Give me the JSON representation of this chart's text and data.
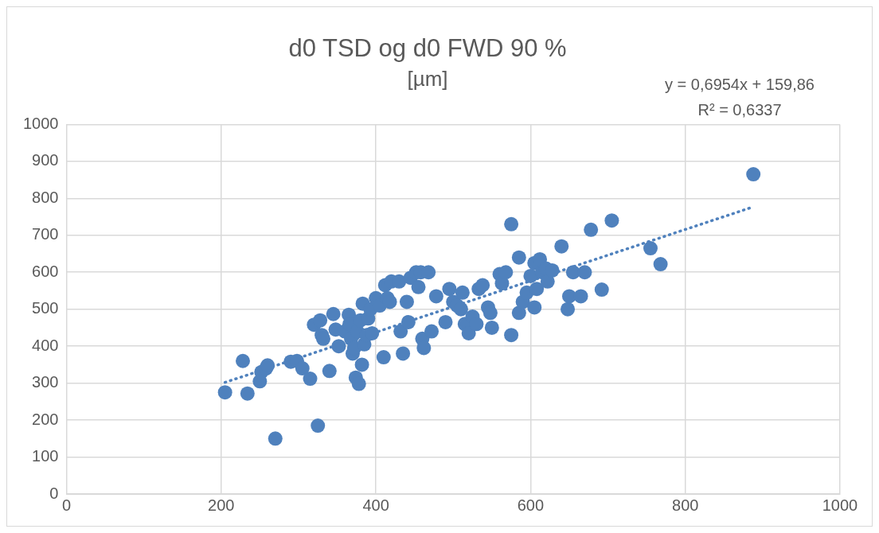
{
  "chart_data": {
    "type": "scatter",
    "title": "d0 TSD og d0 FWD 90 %",
    "subtitle": "[µm]",
    "annotations": [
      "y = 0,6954x + 159,86",
      "R² = 0,6337"
    ],
    "xlim": [
      0,
      1000
    ],
    "xticks": [
      0,
      200,
      400,
      600,
      800,
      1000
    ],
    "ylim": [
      0,
      1000
    ],
    "yticks": [
      0,
      100,
      200,
      300,
      400,
      500,
      600,
      700,
      800,
      900,
      1000
    ],
    "grid": true,
    "legend": false,
    "marker": "circle",
    "series": [
      {
        "color": "#4f81bd",
        "x": [
          205,
          228,
          234,
          250,
          252,
          258,
          260,
          270,
          290,
          298,
          305,
          315,
          320,
          325,
          328,
          330,
          332,
          340,
          345,
          348,
          352,
          360,
          365,
          366,
          368,
          370,
          372,
          374,
          376,
          378,
          380,
          382,
          383,
          385,
          388,
          390,
          393,
          395,
          400,
          405,
          410,
          412,
          415,
          418,
          420,
          430,
          432,
          435,
          440,
          442,
          445,
          452,
          455,
          458,
          460,
          462,
          468,
          472,
          478,
          490,
          495,
          500,
          505,
          510,
          512,
          515,
          520,
          525,
          530,
          533,
          538,
          545,
          548,
          550,
          560,
          563,
          568,
          575,
          575,
          585,
          585,
          590,
          595,
          600,
          605,
          605,
          608,
          612,
          615,
          620,
          622,
          628,
          640,
          648,
          650,
          655,
          665,
          670,
          678,
          692,
          705,
          755,
          768,
          888
        ],
        "values": [
          275,
          360,
          272,
          305,
          330,
          340,
          348,
          150,
          358,
          360,
          340,
          312,
          458,
          185,
          470,
          430,
          420,
          333,
          487,
          445,
          400,
          440,
          485,
          460,
          420,
          380,
          395,
          315,
          440,
          298,
          470,
          350,
          515,
          405,
          430,
          475,
          500,
          435,
          530,
          510,
          370,
          565,
          530,
          520,
          575,
          575,
          440,
          380,
          520,
          465,
          585,
          600,
          560,
          600,
          420,
          395,
          600,
          440,
          535,
          465,
          555,
          520,
          510,
          500,
          545,
          460,
          435,
          480,
          460,
          555,
          565,
          505,
          490,
          450,
          595,
          570,
          600,
          430,
          730,
          640,
          490,
          520,
          545,
          590,
          505,
          625,
          555,
          635,
          600,
          610,
          575,
          605,
          670,
          500,
          535,
          600,
          535,
          600,
          715,
          553,
          740,
          665,
          622,
          865
        ]
      },
      {
        "type": "line",
        "color": "#4f81bd",
        "line_style": "dotted",
        "marker": "none",
        "x": [
          205,
          888
        ],
        "values": [
          302,
          777
        ]
      }
    ]
  }
}
